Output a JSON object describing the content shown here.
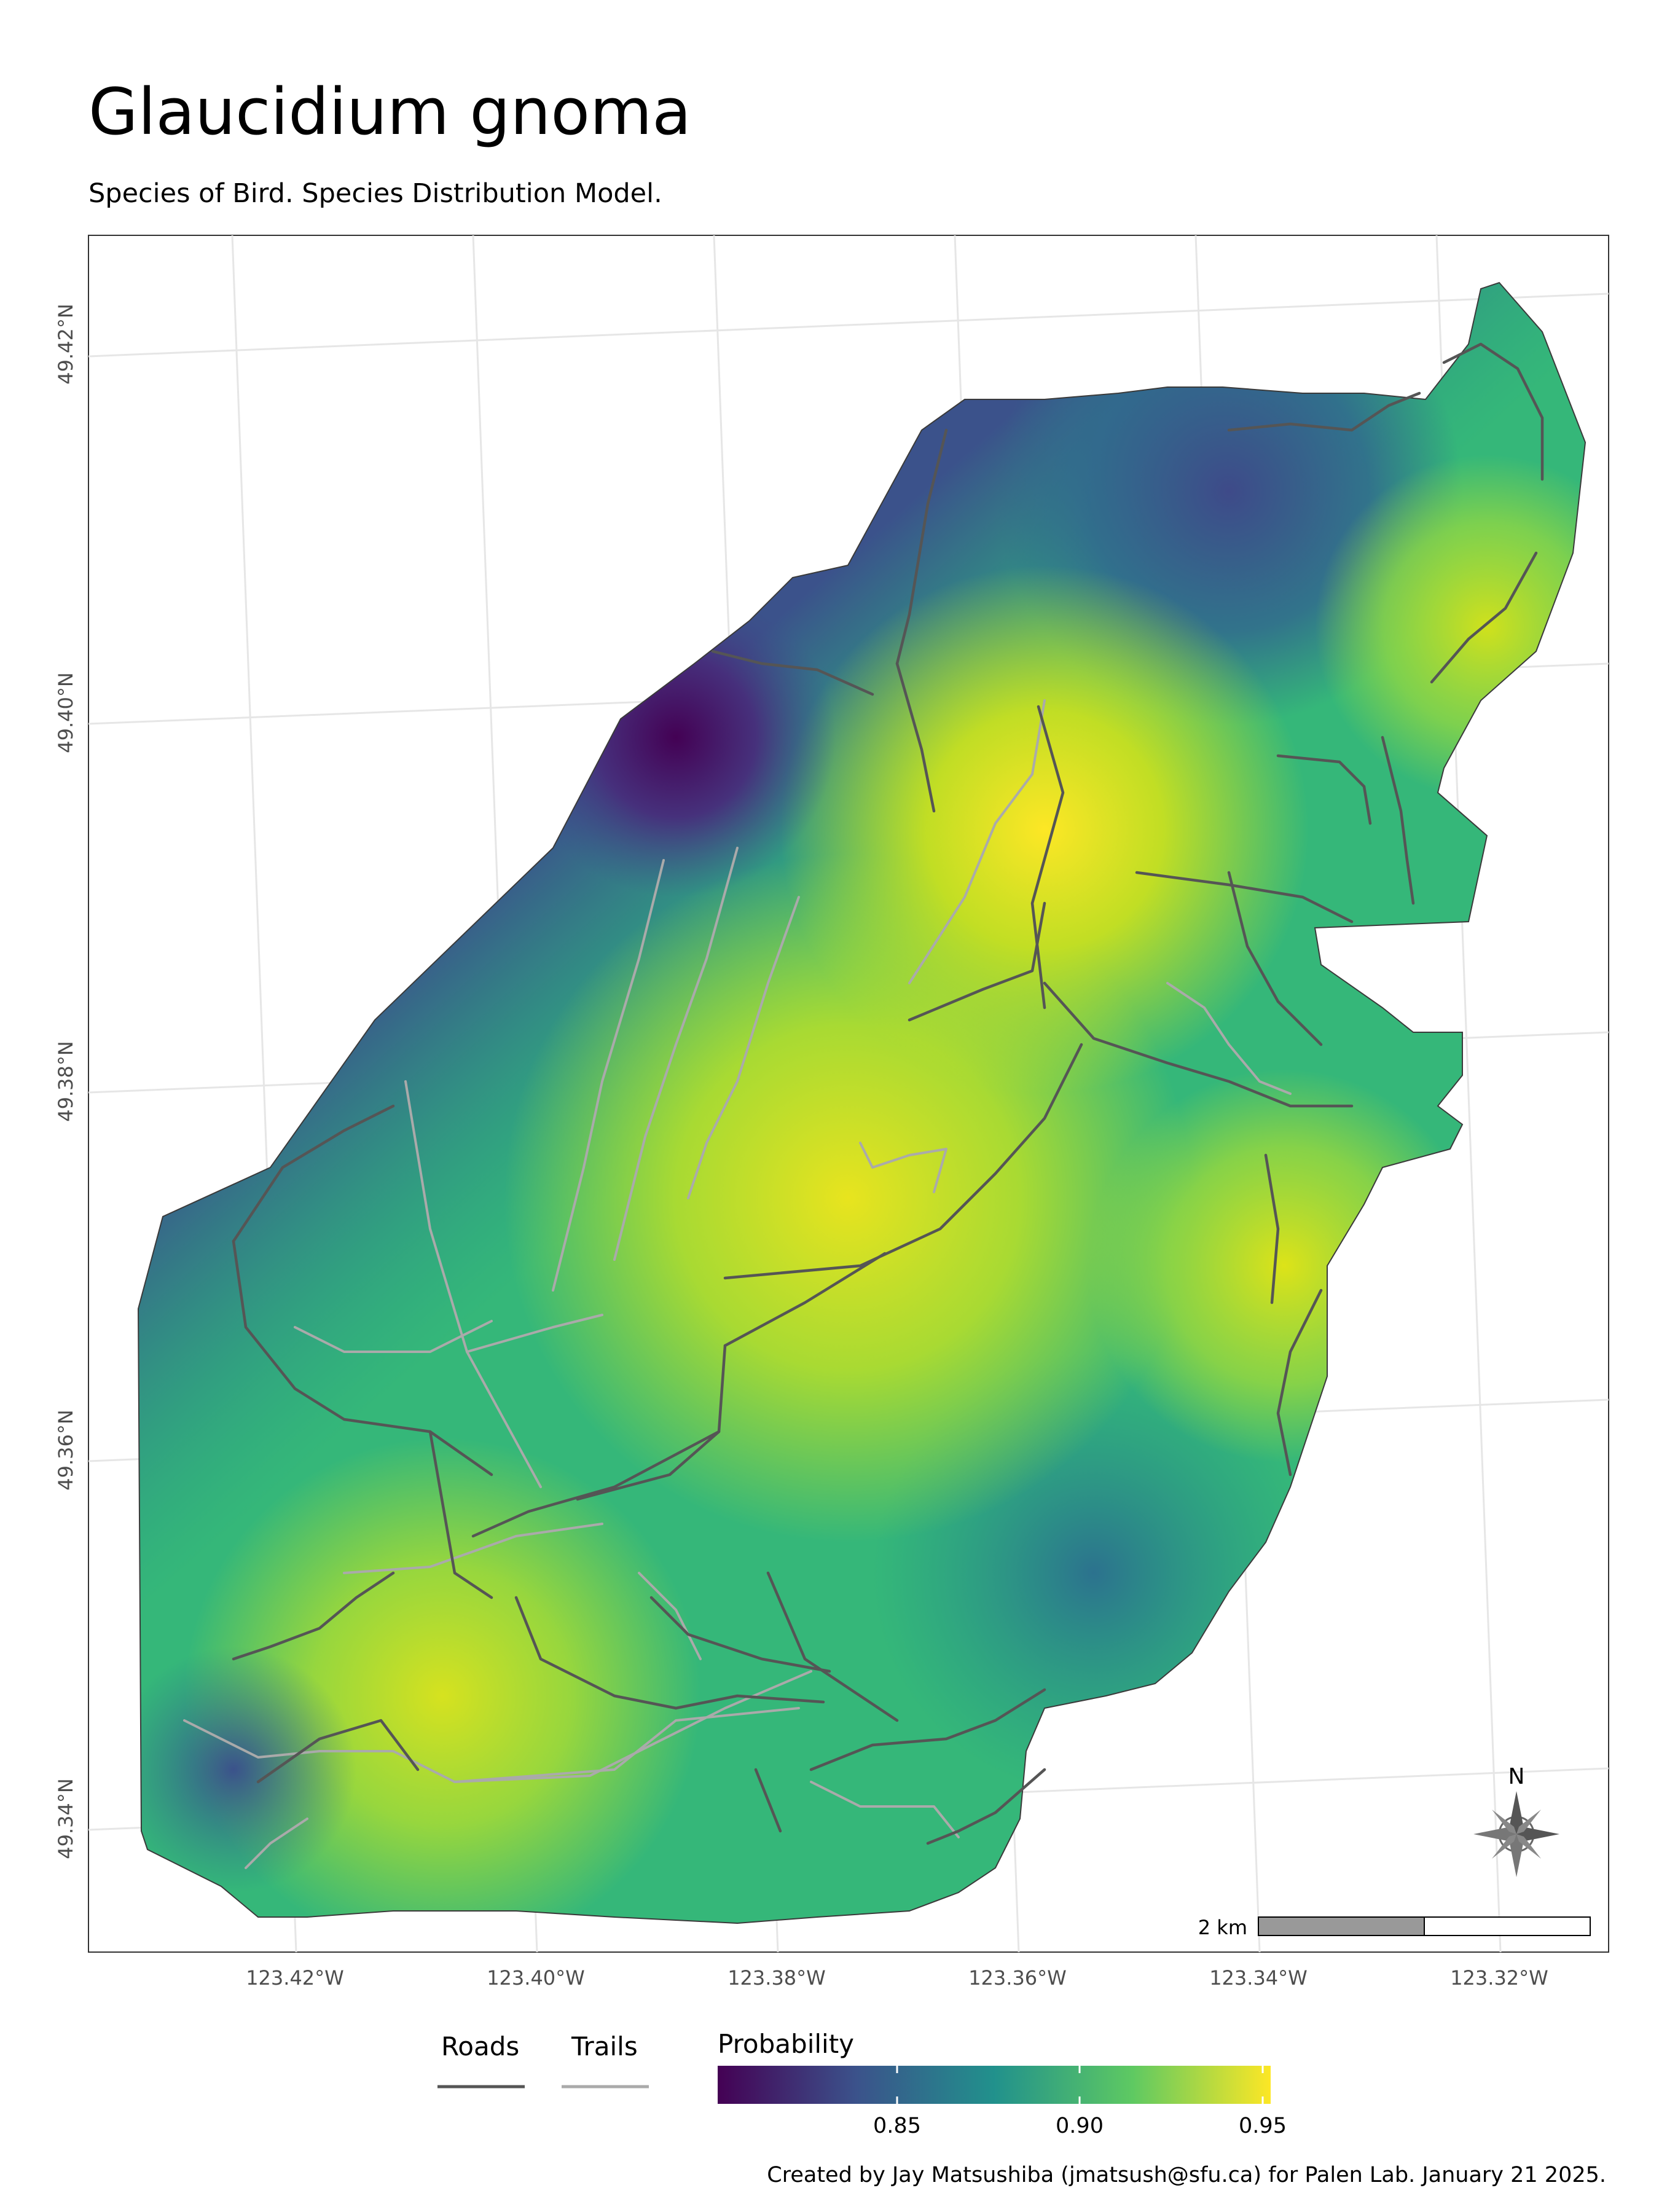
{
  "title": "Glaucidium gnoma",
  "subtitle": "Species of Bird. Species Distribution Model.",
  "axes": {
    "lat_labels": [
      "49.42°N",
      "49.40°N",
      "49.38°N",
      "49.36°N",
      "49.34°N"
    ],
    "lon_labels": [
      "123.42°W",
      "123.40°W",
      "123.38°W",
      "123.36°W",
      "123.34°W",
      "123.32°W"
    ]
  },
  "north_arrow": {
    "label": "N"
  },
  "scale_bar": {
    "label": "2 km"
  },
  "legend": {
    "roads_label": "Roads",
    "trails_label": "Trails",
    "probability_title": "Probability",
    "probability_ticks": [
      "0.85",
      "0.90",
      "0.95"
    ]
  },
  "colors": {
    "roads": "#555555",
    "trails": "#aaaaaa",
    "viridis": [
      "#440154",
      "#3b528b",
      "#21918c",
      "#5ec962",
      "#fde725"
    ]
  },
  "credit": "Created by Jay Matsushiba (jmatsush@sfu.ca) for Palen Lab. January 21 2025."
}
